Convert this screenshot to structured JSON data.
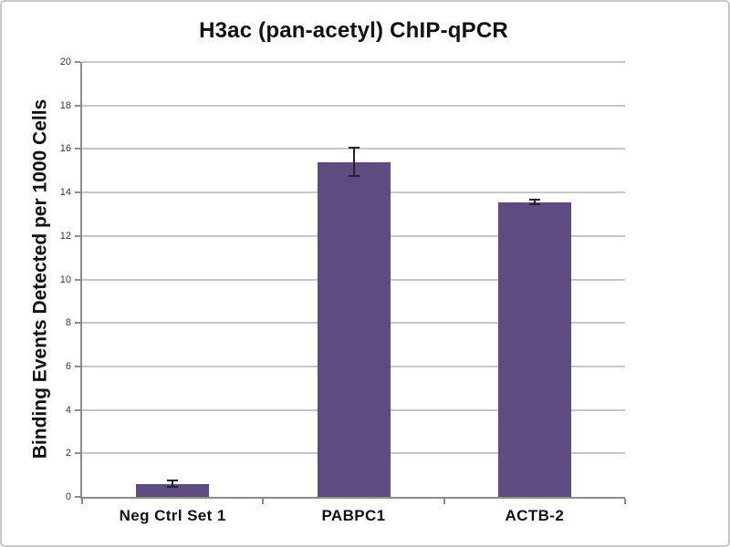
{
  "chart_data": {
    "type": "bar",
    "title": "H3ac (pan-acetyl) ChIP-qPCR",
    "ylabel": "Binding Events Detected per 1000 Cells",
    "xlabel": "",
    "categories": [
      "Neg Ctrl Set 1",
      "PABPC1",
      "ACTB-2"
    ],
    "values": [
      0.6,
      15.4,
      13.55
    ],
    "errors": [
      0.15,
      0.65,
      0.1
    ],
    "ylim": [
      0,
      20
    ],
    "yticks": [
      0,
      2,
      4,
      6,
      8,
      10,
      12,
      14,
      16,
      18,
      20
    ],
    "grid": true,
    "legend": false,
    "error_bars": true
  },
  "style": {
    "bar_color": "#5e4b80",
    "error_bar_color": "#262233",
    "gridline_color": "#c6c6c6",
    "axis_color": "#8c8c8c",
    "tick_label_color": "#3a3a3a",
    "title_color": "#111111",
    "figure_border_color": "#c9c9c9",
    "background_color": "#ffffff"
  }
}
